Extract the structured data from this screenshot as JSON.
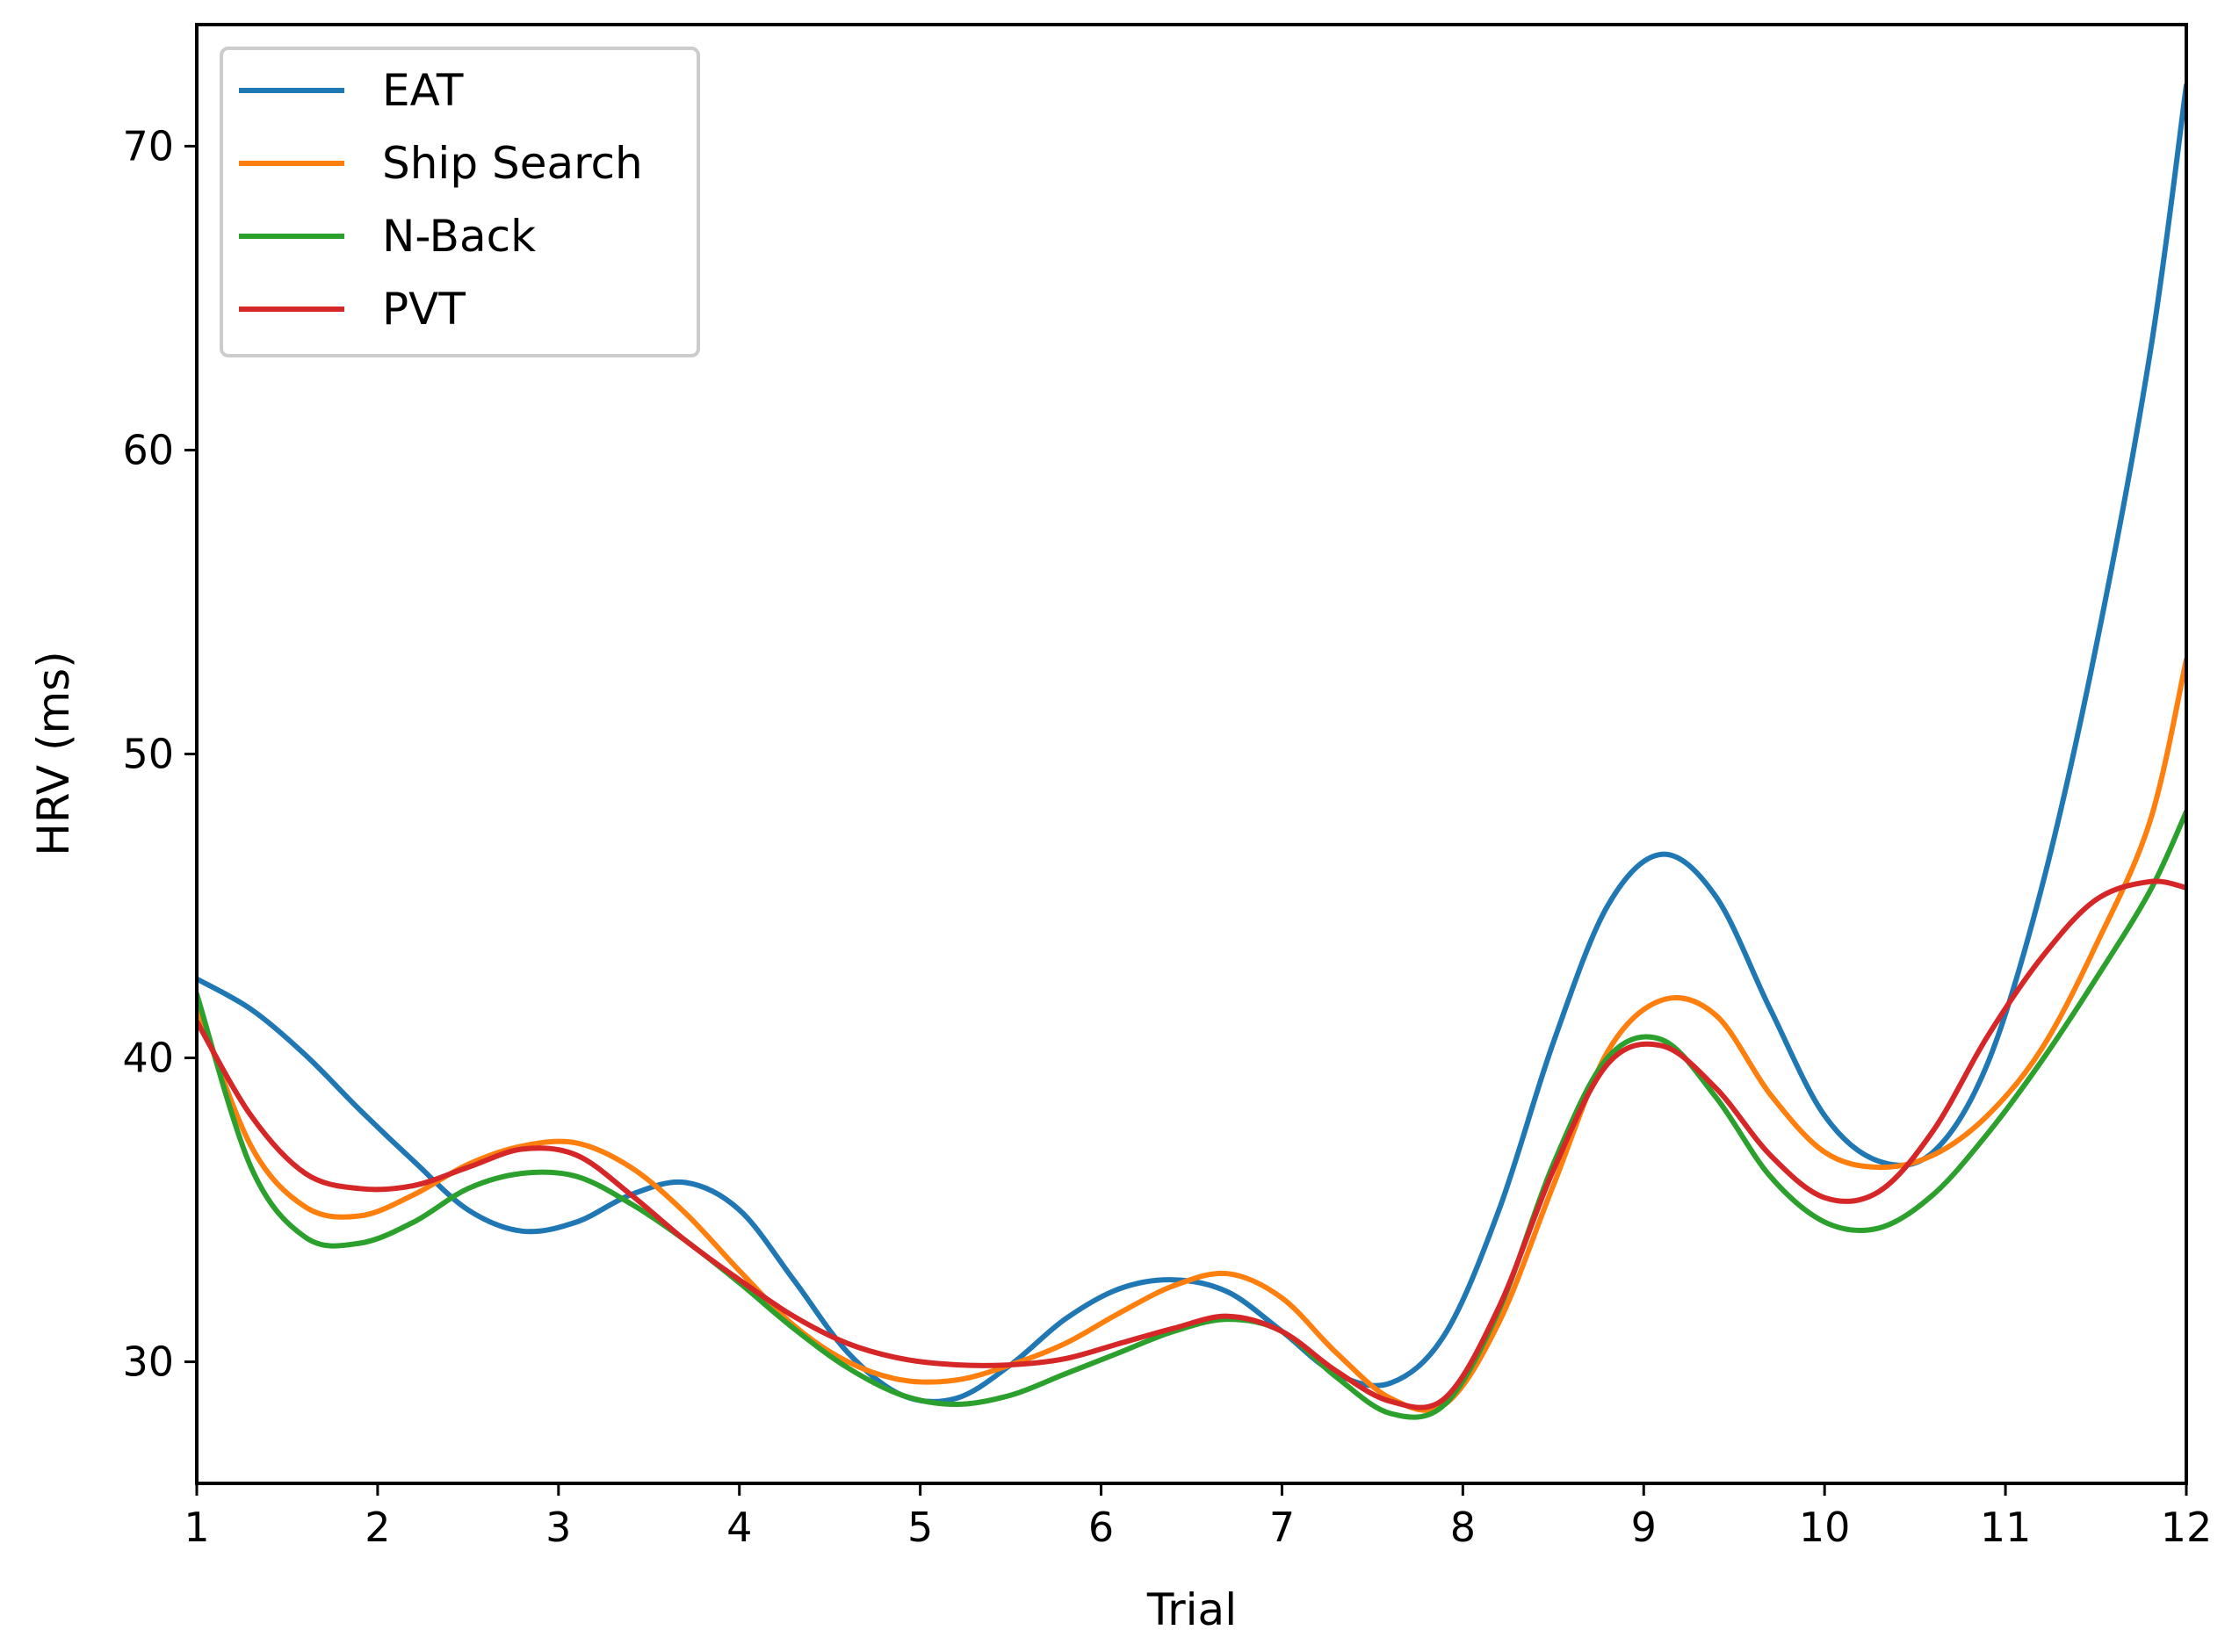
{
  "chart_data": {
    "type": "line",
    "title": "",
    "xlabel": "Trial",
    "ylabel": "HRV (ms)",
    "xlim": [
      1,
      12
    ],
    "ylim": [
      26,
      74
    ],
    "xticks": [
      1,
      2,
      3,
      4,
      5,
      6,
      7,
      8,
      9,
      10,
      11,
      12
    ],
    "yticks": [
      30,
      40,
      50,
      60,
      70
    ],
    "legend_position": "top-left",
    "x": [
      1,
      1.3,
      1.6,
      1.9,
      2.2,
      2.5,
      2.8,
      3.1,
      3.4,
      3.7,
      4.0,
      4.3,
      4.6,
      4.9,
      5.2,
      5.5,
      5.8,
      6.1,
      6.4,
      6.7,
      7.0,
      7.3,
      7.6,
      7.9,
      8.2,
      8.5,
      8.8,
      9.1,
      9.4,
      9.7,
      10.0,
      10.3,
      10.6,
      10.9,
      11.2,
      11.5,
      11.8,
      12
    ],
    "series": [
      {
        "name": "EAT",
        "color": "#1f77b4",
        "values": [
          42.6,
          41.6,
          40.1,
          38.3,
          36.6,
          35.0,
          34.3,
          34.6,
          35.5,
          35.9,
          35.0,
          32.7,
          30.3,
          28.9,
          28.8,
          29.9,
          31.4,
          32.4,
          32.7,
          32.3,
          31.0,
          29.6,
          29.3,
          30.9,
          35.0,
          40.5,
          45.0,
          46.7,
          45.3,
          41.6,
          38.1,
          36.6,
          36.9,
          39.8,
          45.6,
          53.5,
          63.2,
          72.0
        ]
      },
      {
        "name": "Ship Search",
        "color": "#ff7f0e",
        "values": [
          41.7,
          37.1,
          35.1,
          34.8,
          35.5,
          36.5,
          37.1,
          37.2,
          36.4,
          34.9,
          33.0,
          31.2,
          30.0,
          29.4,
          29.4,
          29.9,
          30.6,
          31.6,
          32.5,
          32.9,
          32.1,
          30.3,
          28.8,
          28.6,
          31.3,
          35.8,
          40.2,
          41.9,
          41.4,
          38.8,
          36.9,
          36.4,
          36.8,
          38.1,
          40.3,
          43.7,
          47.8,
          53.1
        ]
      },
      {
        "name": "N-Back",
        "color": "#2ca02c",
        "values": [
          42.1,
          36.4,
          34.1,
          33.9,
          34.6,
          35.7,
          36.2,
          36.1,
          35.2,
          34.0,
          32.6,
          31.1,
          29.8,
          28.9,
          28.6,
          28.9,
          29.6,
          30.3,
          31.0,
          31.4,
          31.0,
          29.5,
          28.3,
          28.6,
          31.7,
          36.5,
          40.0,
          40.6,
          38.7,
          36.1,
          34.6,
          34.4,
          35.5,
          37.5,
          39.9,
          42.6,
          45.5,
          48.1
        ]
      },
      {
        "name": "PVT",
        "color": "#d62728",
        "values": [
          41.2,
          38.1,
          36.2,
          35.7,
          35.8,
          36.4,
          37.0,
          36.8,
          35.5,
          34.0,
          32.7,
          31.5,
          30.6,
          30.1,
          29.9,
          29.9,
          30.1,
          30.6,
          31.1,
          31.5,
          31.0,
          29.7,
          28.7,
          28.8,
          31.8,
          36.3,
          39.8,
          40.4,
          39.0,
          36.8,
          35.4,
          35.6,
          37.6,
          40.7,
          43.3,
          45.2,
          45.8,
          45.6
        ]
      }
    ]
  }
}
